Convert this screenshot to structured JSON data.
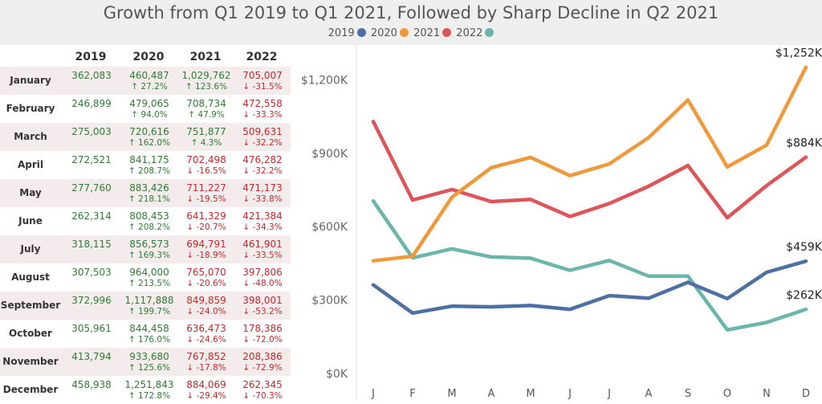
{
  "title": "Growth from Q1 2019 to Q1 2021, Followed by Sharp Decline in Q2 2021",
  "legend": [
    {
      "label": "2019",
      "color": "#4e6fa3"
    },
    {
      "label": "2020",
      "color": "#f0983a"
    },
    {
      "label": "2021",
      "color": "#de5458"
    },
    {
      "label": "2022",
      "color": "#6ab6aa"
    }
  ],
  "table": {
    "headers": [
      "2019",
      "2020",
      "2021",
      "2022"
    ],
    "rows": [
      {
        "month": "January",
        "v2019": "362,083",
        "v2020": "460,487",
        "p2020": "↑ 27.2%",
        "v2021": "1,029,762",
        "p2021": "↑ 123.6%",
        "v2022": "705,007",
        "p2022": "↓ -31.5%"
      },
      {
        "month": "February",
        "v2019": "246,899",
        "v2020": "479,065",
        "p2020": "↑ 94.0%",
        "v2021": "708,734",
        "p2021": "↑ 47.9%",
        "v2022": "472,558",
        "p2022": "↓ -33.3%"
      },
      {
        "month": "March",
        "v2019": "275,003",
        "v2020": "720,616",
        "p2020": "↑ 162.0%",
        "v2021": "751,877",
        "p2021": "↑ 4.3%",
        "v2022": "509,631",
        "p2022": "↓ -32.2%"
      },
      {
        "month": "April",
        "v2019": "272,521",
        "v2020": "841,175",
        "p2020": "↑ 208.7%",
        "v2021": "702,498",
        "p2021": "↓ -16.5%",
        "v2022": "476,282",
        "p2022": "↓ -32.2%"
      },
      {
        "month": "May",
        "v2019": "277,760",
        "v2020": "883,426",
        "p2020": "↑ 218.1%",
        "v2021": "711,227",
        "p2021": "↓ -19.5%",
        "v2022": "471,173",
        "p2022": "↓ -33.8%"
      },
      {
        "month": "June",
        "v2019": "262,314",
        "v2020": "808,453",
        "p2020": "↑ 208.2%",
        "v2021": "641,329",
        "p2021": "↓ -20.7%",
        "v2022": "421,384",
        "p2022": "↓ -34.3%"
      },
      {
        "month": "July",
        "v2019": "318,115",
        "v2020": "856,573",
        "p2020": "↑ 169.3%",
        "v2021": "694,791",
        "p2021": "↓ -18.9%",
        "v2022": "461,901",
        "p2022": "↓ -33.5%"
      },
      {
        "month": "August",
        "v2019": "307,503",
        "v2020": "964,000",
        "p2020": "↑ 213.5%",
        "v2021": "765,070",
        "p2021": "↓ -20.6%",
        "v2022": "397,806",
        "p2022": "↓ -48.0%"
      },
      {
        "month": "September",
        "v2019": "372,996",
        "v2020": "1,117,888",
        "p2020": "↑ 199.7%",
        "v2021": "849,859",
        "p2021": "↓ -24.0%",
        "v2022": "398,001",
        "p2022": "↓ -53.2%"
      },
      {
        "month": "October",
        "v2019": "305,961",
        "v2020": "844,458",
        "p2020": "↑ 176.0%",
        "v2021": "636,473",
        "p2021": "↓ -24.6%",
        "v2022": "178,386",
        "p2022": "↓ -72.0%"
      },
      {
        "month": "November",
        "v2019": "413,794",
        "v2020": "933,680",
        "p2020": "↑ 125.6%",
        "v2021": "767,852",
        "p2021": "↓ -17.8%",
        "v2022": "208,386",
        "p2022": "↓ -72.9%"
      },
      {
        "month": "December",
        "v2019": "458,938",
        "v2020": "1,251,843",
        "p2020": "↑ 172.8%",
        "v2021": "884,069",
        "p2021": "↓ -29.4%",
        "v2022": "262,345",
        "p2022": "↓ -70.3%"
      }
    ]
  },
  "chart_data": {
    "type": "line",
    "title": "Growth from Q1 2019 to Q1 2021, Followed by Sharp Decline in Q2 2021",
    "xlabel": "",
    "ylabel": "",
    "categories": [
      "J",
      "F",
      "M",
      "A",
      "M",
      "J",
      "J",
      "A",
      "S",
      "O",
      "N",
      "D"
    ],
    "ylim": [
      0,
      1300000
    ],
    "yticks": [
      0,
      300000,
      600000,
      900000,
      1200000
    ],
    "ytick_labels": [
      "$0K",
      "$300K",
      "$600K",
      "$900K",
      "$1,200K"
    ],
    "grid": false,
    "legend_position": "top",
    "series": [
      {
        "name": "2019",
        "color": "#4e6fa3",
        "values": [
          362083,
          246899,
          275003,
          272521,
          277760,
          262314,
          318115,
          307503,
          372996,
          305961,
          413794,
          458938
        ],
        "end_label": "$459K"
      },
      {
        "name": "2020",
        "color": "#f0983a",
        "values": [
          460487,
          479065,
          720616,
          841175,
          883426,
          808453,
          856573,
          964000,
          1117888,
          844458,
          933680,
          1251843
        ],
        "end_label": "$1,252K"
      },
      {
        "name": "2021",
        "color": "#de5458",
        "values": [
          1029762,
          708734,
          751877,
          702498,
          711227,
          641329,
          694791,
          765070,
          849859,
          636473,
          767852,
          884069
        ],
        "end_label": "$884K"
      },
      {
        "name": "2022",
        "color": "#6ab6aa",
        "values": [
          705007,
          472558,
          509631,
          476282,
          471173,
          421384,
          461901,
          397806,
          398001,
          178386,
          208386,
          262345
        ],
        "end_label": "$262K"
      }
    ]
  }
}
